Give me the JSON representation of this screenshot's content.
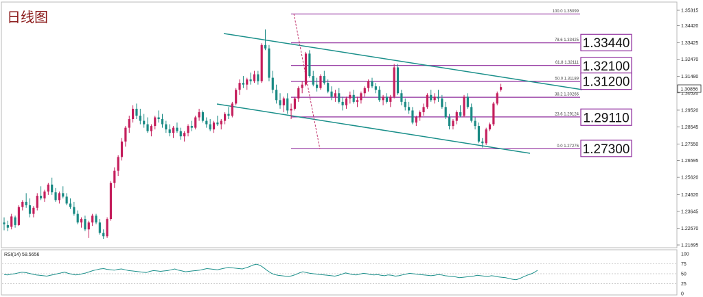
{
  "chart_data": {
    "type": "candlestick",
    "title": "日线图",
    "price_scale": {
      "ylim": [
        1.21695,
        1.35315
      ],
      "ticks": [
        "1.35315",
        "1.34420",
        "1.33425",
        "1.32470",
        "1.31480",
        "1.30520",
        "1.29520",
        "1.28545",
        "1.27550",
        "1.26595",
        "1.25620",
        "1.24620",
        "1.23645",
        "1.22670",
        "1.21695"
      ],
      "current_price": "1.30856"
    },
    "fibonacci": {
      "levels": [
        {
          "label": "100.0",
          "price": "1.35099"
        },
        {
          "label": "78.6",
          "price": "1.33425"
        },
        {
          "label": "61.8",
          "price": "1.32111"
        },
        {
          "label": "50.0",
          "price": "1.31189"
        },
        {
          "label": "38.2",
          "price": "1.30266"
        },
        {
          "label": "23.6",
          "price": "1.29124"
        },
        {
          "label": "0.0",
          "price": "1.27276"
        }
      ]
    },
    "level_boxes": [
      "1.33440",
      "1.32100",
      "1.31200",
      "1.29110",
      "1.27300"
    ],
    "rsi": {
      "label": "RSI(14) 58.5656",
      "ticks": [
        "100",
        "75",
        "50",
        "25",
        "0"
      ],
      "ylim": [
        0,
        100
      ],
      "values": [
        48,
        47,
        49,
        50,
        52,
        54,
        53,
        51,
        49,
        47,
        46,
        45,
        44,
        46,
        48,
        50,
        52,
        54,
        51,
        49,
        47,
        48,
        50,
        52,
        55,
        58,
        60,
        62,
        63,
        61,
        60,
        59,
        61,
        62,
        60,
        58,
        57,
        56,
        55,
        54,
        53,
        56,
        58,
        57,
        56,
        57,
        58,
        60,
        62,
        59,
        57,
        55,
        56,
        57,
        58,
        59,
        61,
        63,
        62,
        61,
        60,
        62,
        64,
        66,
        65,
        64,
        63,
        62,
        65,
        68,
        72,
        74,
        71,
        65,
        58,
        52,
        48,
        46,
        45,
        44,
        43,
        45,
        48,
        52,
        55,
        53,
        51,
        50,
        49,
        48,
        47,
        46,
        45,
        44,
        46,
        49,
        52,
        50,
        48,
        47,
        49,
        51,
        50,
        48,
        47,
        48,
        46,
        45,
        47,
        46,
        44,
        45,
        47,
        49,
        51,
        50,
        49,
        48,
        47,
        46,
        45,
        46,
        48,
        47,
        45,
        44,
        43,
        42,
        40,
        41,
        42,
        43,
        44,
        46,
        45,
        44,
        43,
        45,
        44,
        42,
        41,
        40,
        38,
        36,
        35,
        38,
        42,
        46,
        49,
        53,
        58.5656
      ]
    },
    "candles": [
      [
        1.23,
        1.233,
        1.2255,
        1.229
      ],
      [
        1.2285,
        1.231,
        1.225,
        1.227
      ],
      [
        1.2275,
        1.235,
        1.226,
        1.2335
      ],
      [
        1.233,
        1.234,
        1.227,
        1.2285
      ],
      [
        1.2285,
        1.24,
        1.228,
        1.239
      ],
      [
        1.239,
        1.243,
        1.237,
        1.242
      ],
      [
        1.242,
        1.247,
        1.2385,
        1.24
      ],
      [
        1.24,
        1.244,
        1.233,
        1.235
      ],
      [
        1.235,
        1.2395,
        1.233,
        1.2385
      ],
      [
        1.2385,
        1.247,
        1.237,
        1.2455
      ],
      [
        1.2455,
        1.251,
        1.243,
        1.244
      ],
      [
        1.244,
        1.249,
        1.242,
        1.248
      ],
      [
        1.248,
        1.253,
        1.246,
        1.252
      ],
      [
        1.252,
        1.256,
        1.246,
        1.2475
      ],
      [
        1.2475,
        1.25,
        1.242,
        1.243
      ],
      [
        1.243,
        1.248,
        1.241,
        1.247
      ],
      [
        1.247,
        1.251,
        1.244,
        1.245
      ],
      [
        1.245,
        1.247,
        1.24,
        1.241
      ],
      [
        1.241,
        1.244,
        1.238,
        1.239
      ],
      [
        1.239,
        1.242,
        1.234,
        1.235
      ],
      [
        1.235,
        1.237,
        1.229,
        1.23
      ],
      [
        1.23,
        1.233,
        1.227,
        1.232
      ],
      [
        1.232,
        1.234,
        1.225,
        1.226
      ],
      [
        1.226,
        1.231,
        1.221,
        1.23
      ],
      [
        1.23,
        1.235,
        1.228,
        1.234
      ],
      [
        1.234,
        1.235,
        1.229,
        1.23
      ],
      [
        1.23,
        1.232,
        1.223,
        1.224
      ],
      [
        1.224,
        1.226,
        1.2205,
        1.222
      ],
      [
        1.222,
        1.233,
        1.221,
        1.232
      ],
      [
        1.232,
        1.254,
        1.231,
        1.253
      ],
      [
        1.253,
        1.262,
        1.25,
        1.26
      ],
      [
        1.26,
        1.269,
        1.257,
        1.268
      ],
      [
        1.268,
        1.279,
        1.266,
        1.277
      ],
      [
        1.277,
        1.286,
        1.274,
        1.285
      ],
      [
        1.285,
        1.292,
        1.282,
        1.29
      ],
      [
        1.29,
        1.298,
        1.288,
        1.296
      ],
      [
        1.296,
        1.299,
        1.29,
        1.292
      ],
      [
        1.292,
        1.296,
        1.287,
        1.289
      ],
      [
        1.289,
        1.293,
        1.285,
        1.287
      ],
      [
        1.287,
        1.291,
        1.282,
        1.283
      ],
      [
        1.283,
        1.287,
        1.28,
        1.286
      ],
      [
        1.286,
        1.292,
        1.284,
        1.291
      ],
      [
        1.291,
        1.295,
        1.288,
        1.29
      ],
      [
        1.29,
        1.293,
        1.285,
        1.287
      ],
      [
        1.287,
        1.289,
        1.282,
        1.284
      ],
      [
        1.284,
        1.287,
        1.28,
        1.282
      ],
      [
        1.282,
        1.286,
        1.279,
        1.285
      ],
      [
        1.285,
        1.288,
        1.282,
        1.283
      ],
      [
        1.283,
        1.285,
        1.278,
        1.28
      ],
      [
        1.28,
        1.283,
        1.277,
        1.282
      ],
      [
        1.282,
        1.287,
        1.28,
        1.286
      ],
      [
        1.286,
        1.289,
        1.283,
        1.285
      ],
      [
        1.285,
        1.292,
        1.284,
        1.291
      ],
      [
        1.291,
        1.296,
        1.289,
        1.294
      ],
      [
        1.294,
        1.295,
        1.288,
        1.289
      ],
      [
        1.289,
        1.291,
        1.285,
        1.287
      ],
      [
        1.287,
        1.29,
        1.283,
        1.284
      ],
      [
        1.284,
        1.289,
        1.282,
        1.288
      ],
      [
        1.288,
        1.292,
        1.286,
        1.287
      ],
      [
        1.287,
        1.29,
        1.284,
        1.289
      ],
      [
        1.289,
        1.294,
        1.287,
        1.293
      ],
      [
        1.293,
        1.297,
        1.29,
        1.292
      ],
      [
        1.292,
        1.3,
        1.291,
        1.299
      ],
      [
        1.299,
        1.308,
        1.298,
        1.307
      ],
      [
        1.307,
        1.313,
        1.304,
        1.311
      ],
      [
        1.311,
        1.315,
        1.308,
        1.31
      ],
      [
        1.31,
        1.314,
        1.307,
        1.313
      ],
      [
        1.313,
        1.317,
        1.31,
        1.312
      ],
      [
        1.312,
        1.318,
        1.311,
        1.316
      ],
      [
        1.316,
        1.318,
        1.31,
        1.312
      ],
      [
        1.312,
        1.334,
        1.311,
        1.333
      ],
      [
        1.333,
        1.342,
        1.33,
        1.331
      ],
      [
        1.331,
        1.333,
        1.312,
        1.314
      ],
      [
        1.314,
        1.318,
        1.305,
        1.307
      ],
      [
        1.307,
        1.31,
        1.299,
        1.301
      ],
      [
        1.301,
        1.305,
        1.296,
        1.298
      ],
      [
        1.298,
        1.303,
        1.294,
        1.302
      ],
      [
        1.302,
        1.305,
        1.293,
        1.295
      ],
      [
        1.295,
        1.299,
        1.29,
        1.296
      ],
      [
        1.296,
        1.303,
        1.295,
        1.302
      ],
      [
        1.302,
        1.309,
        1.3,
        1.308
      ],
      [
        1.308,
        1.312,
        1.305,
        1.31
      ],
      [
        1.31,
        1.329,
        1.309,
        1.328
      ],
      [
        1.328,
        1.33,
        1.314,
        1.315
      ],
      [
        1.315,
        1.318,
        1.309,
        1.31
      ],
      [
        1.31,
        1.314,
        1.306,
        1.308
      ],
      [
        1.308,
        1.316,
        1.307,
        1.315
      ],
      [
        1.315,
        1.318,
        1.31,
        1.311
      ],
      [
        1.311,
        1.313,
        1.305,
        1.306
      ],
      [
        1.306,
        1.309,
        1.301,
        1.303
      ],
      [
        1.303,
        1.307,
        1.3,
        1.305
      ],
      [
        1.305,
        1.308,
        1.299,
        1.3
      ],
      [
        1.3,
        1.303,
        1.295,
        1.298
      ],
      [
        1.298,
        1.303,
        1.296,
        1.302
      ],
      [
        1.302,
        1.306,
        1.299,
        1.304
      ],
      [
        1.304,
        1.307,
        1.299,
        1.3
      ],
      [
        1.3,
        1.303,
        1.297,
        1.301
      ],
      [
        1.301,
        1.306,
        1.299,
        1.305
      ],
      [
        1.305,
        1.309,
        1.303,
        1.308
      ],
      [
        1.308,
        1.313,
        1.306,
        1.312
      ],
      [
        1.312,
        1.314,
        1.308,
        1.309
      ],
      [
        1.309,
        1.311,
        1.305,
        1.307
      ],
      [
        1.307,
        1.309,
        1.3,
        1.301
      ],
      [
        1.301,
        1.304,
        1.298,
        1.303
      ],
      [
        1.303,
        1.305,
        1.299,
        1.3
      ],
      [
        1.3,
        1.304,
        1.297,
        1.303
      ],
      [
        1.303,
        1.322,
        1.302,
        1.32
      ],
      [
        1.32,
        1.322,
        1.304,
        1.305
      ],
      [
        1.305,
        1.307,
        1.298,
        1.3
      ],
      [
        1.3,
        1.302,
        1.295,
        1.297
      ],
      [
        1.297,
        1.3,
        1.293,
        1.295
      ],
      [
        1.295,
        1.297,
        1.287,
        1.288
      ],
      [
        1.288,
        1.292,
        1.286,
        1.291
      ],
      [
        1.291,
        1.295,
        1.289,
        1.294
      ],
      [
        1.294,
        1.299,
        1.292,
        1.297
      ],
      [
        1.297,
        1.305,
        1.296,
        1.304
      ],
      [
        1.304,
        1.307,
        1.3,
        1.301
      ],
      [
        1.301,
        1.305,
        1.299,
        1.303
      ],
      [
        1.303,
        1.307,
        1.3,
        1.302
      ],
      [
        1.302,
        1.304,
        1.296,
        1.297
      ],
      [
        1.297,
        1.3,
        1.29,
        1.291
      ],
      [
        1.291,
        1.293,
        1.284,
        1.286
      ],
      [
        1.286,
        1.29,
        1.284,
        1.289
      ],
      [
        1.289,
        1.295,
        1.287,
        1.294
      ],
      [
        1.294,
        1.298,
        1.291,
        1.292
      ],
      [
        1.292,
        1.304,
        1.291,
        1.303
      ],
      [
        1.303,
        1.305,
        1.296,
        1.297
      ],
      [
        1.297,
        1.299,
        1.288,
        1.289
      ],
      [
        1.289,
        1.291,
        1.284,
        1.286
      ],
      [
        1.286,
        1.288,
        1.276,
        1.277
      ],
      [
        1.277,
        1.279,
        1.2735,
        1.276
      ],
      [
        1.276,
        1.285,
        1.275,
        1.284
      ],
      [
        1.284,
        1.288,
        1.283,
        1.287
      ],
      [
        1.287,
        1.3,
        1.286,
        1.299
      ],
      [
        1.299,
        1.306,
        1.298,
        1.305
      ],
      [
        1.307,
        1.3105,
        1.306,
        1.3086
      ]
    ]
  }
}
